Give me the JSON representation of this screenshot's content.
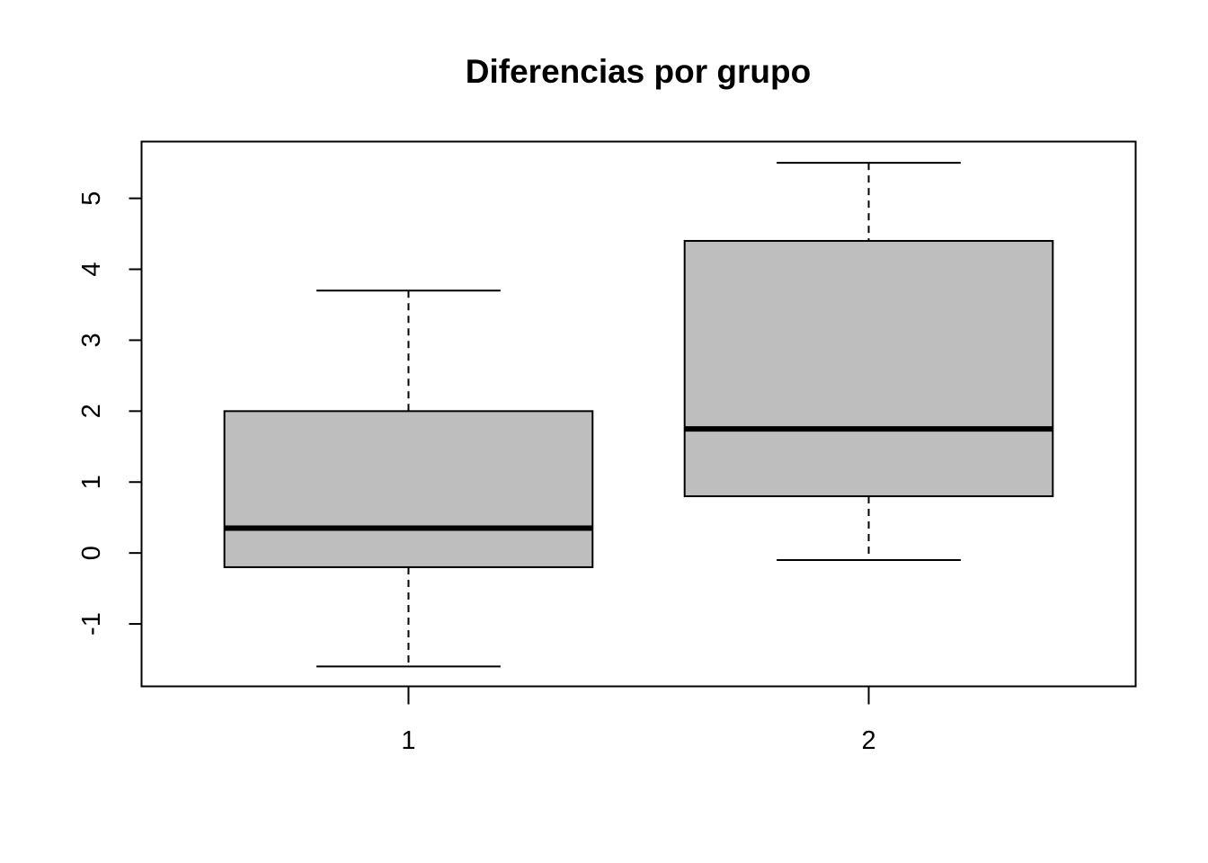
{
  "chart_data": {
    "type": "boxplot",
    "title": "Diferencias por grupo",
    "xlabel": "",
    "ylabel": "",
    "categories": [
      "1",
      "2"
    ],
    "boxes": [
      {
        "category": "1",
        "whisker_low": -1.6,
        "q1": -0.2,
        "median": 0.35,
        "q3": 2.0,
        "whisker_high": 3.7
      },
      {
        "category": "2",
        "whisker_low": -0.1,
        "q1": 0.8,
        "median": 1.75,
        "q3": 4.4,
        "whisker_high": 5.5
      }
    ],
    "ylim": [
      -1.88,
      5.8
    ],
    "yticks": [
      -1,
      0,
      1,
      2,
      3,
      4,
      5
    ],
    "box_fill": "#bebebe",
    "line_color": "#000000",
    "grid": false
  }
}
